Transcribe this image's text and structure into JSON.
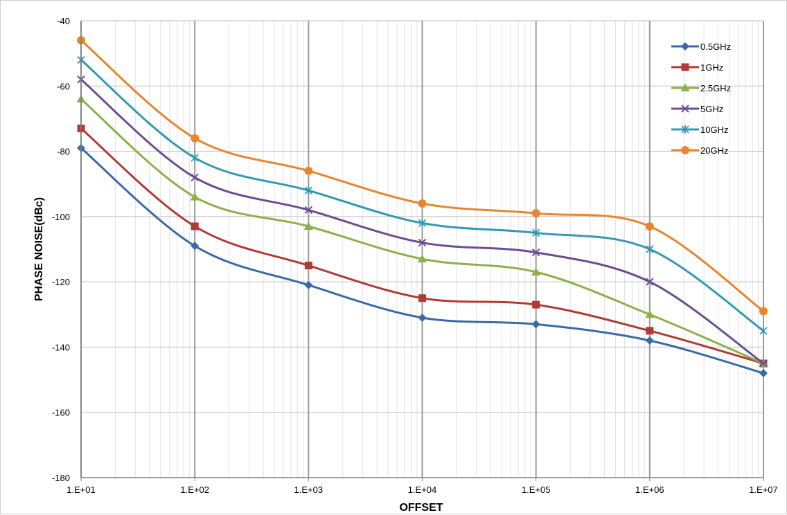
{
  "chart_data": {
    "type": "line",
    "title": "",
    "xlabel": "OFFSET",
    "ylabel": "PHASE NOISE(dBc)",
    "x_scale": "log",
    "x": [
      10,
      100,
      1000,
      10000,
      100000,
      1000000,
      10000000
    ],
    "x_tick_labels": [
      "1.E+01",
      "1.E+02",
      "1.E+03",
      "1.E+04",
      "1.E+05",
      "1.E+06",
      "1.E+07"
    ],
    "xlim": [
      10,
      10000000
    ],
    "ylim": [
      -180,
      -40
    ],
    "y_ticks": [
      -40,
      -60,
      -80,
      -100,
      -120,
      -140,
      -160,
      -180
    ],
    "y_tick_labels": [
      "-40",
      "-60",
      "-80",
      "-100",
      "-120",
      "-140",
      "-160",
      "-180"
    ],
    "grid": true,
    "minor_grid": true,
    "legend_position": "top-right",
    "series": [
      {
        "name": "0.5GHz",
        "color": "#3a6aa5",
        "marker": "diamond",
        "values": [
          -79,
          -109,
          -121,
          -131,
          -133,
          -138,
          -148
        ]
      },
      {
        "name": "1GHz",
        "color": "#b03a35",
        "marker": "square",
        "values": [
          -73,
          -103,
          -115,
          -125,
          -127,
          -135,
          -145
        ]
      },
      {
        "name": "2.5GHz",
        "color": "#8db04a",
        "marker": "triangle",
        "values": [
          -64,
          -94,
          -103,
          -113,
          -117,
          -130,
          -145
        ]
      },
      {
        "name": "5GHz",
        "color": "#6c4d92",
        "marker": "x",
        "values": [
          -58,
          -88,
          -98,
          -108,
          -111,
          -120,
          -145
        ]
      },
      {
        "name": "10GHz",
        "color": "#3399b2",
        "marker": "star",
        "values": [
          -52,
          -82,
          -92,
          -102,
          -105,
          -110,
          -135
        ]
      },
      {
        "name": "20GHz",
        "color": "#e8852e",
        "marker": "circle",
        "values": [
          -46,
          -76,
          -86,
          -96,
          -99,
          -103,
          -129
        ]
      }
    ]
  }
}
